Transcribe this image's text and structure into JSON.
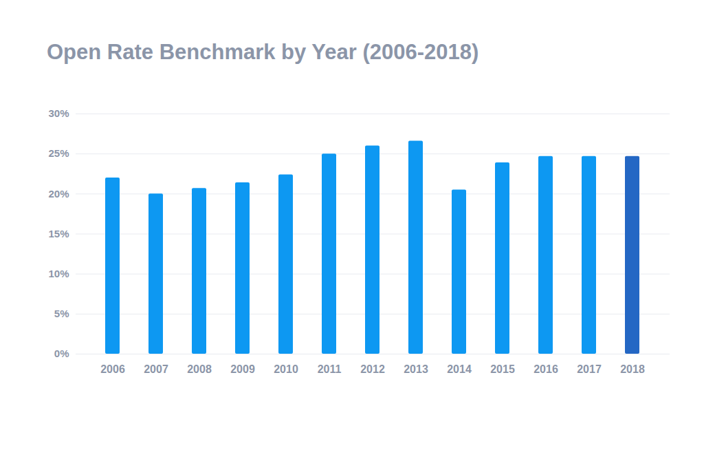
{
  "chart_data": {
    "type": "bar",
    "title": "Open Rate Benchmark by Year (2006-2018)",
    "categories": [
      "2006",
      "2007",
      "2008",
      "2009",
      "2010",
      "2011",
      "2012",
      "2013",
      "2014",
      "2015",
      "2016",
      "2017",
      "2018"
    ],
    "values": [
      22.0,
      20.0,
      20.7,
      21.4,
      22.4,
      25.0,
      26.0,
      26.6,
      20.5,
      23.9,
      24.7,
      24.7,
      24.7
    ],
    "colors": [
      "#0d98f2",
      "#0d98f2",
      "#0d98f2",
      "#0d98f2",
      "#0d98f2",
      "#0d98f2",
      "#0d98f2",
      "#0d98f2",
      "#0d98f2",
      "#0d98f2",
      "#0d98f2",
      "#0d98f2",
      "#2467c4"
    ],
    "ylim": [
      0,
      30
    ],
    "yticks": [
      {
        "value": 0,
        "label": "0%"
      },
      {
        "value": 5,
        "label": "5%"
      },
      {
        "value": 10,
        "label": "10%"
      },
      {
        "value": 15,
        "label": "15%"
      },
      {
        "value": 20,
        "label": "20%"
      },
      {
        "value": 25,
        "label": "25%"
      },
      {
        "value": 30,
        "label": "30%"
      }
    ],
    "grid": true
  }
}
